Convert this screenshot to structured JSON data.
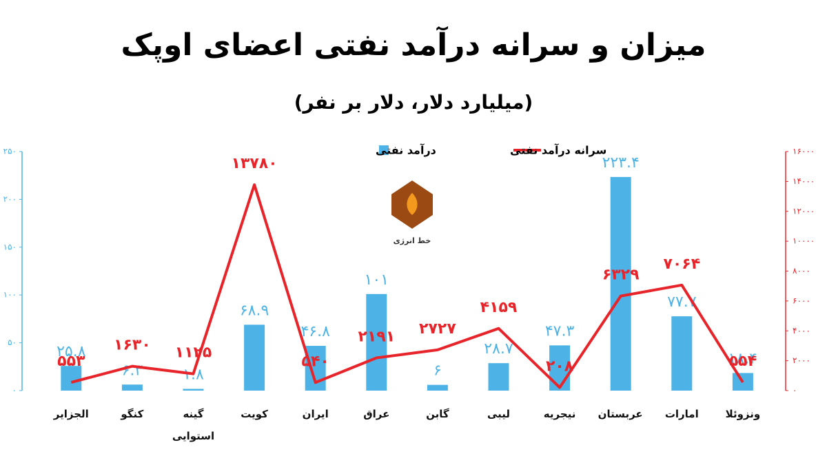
{
  "chart_data": {
    "type": "bar",
    "title": "میزان و سرانه درآمد نفتی اعضای اوپک",
    "subtitle": "(میلیارد دلار، دلار بر نفر)",
    "categories": [
      "الجزایر",
      "کنگو",
      "گینه استوایی",
      "کویت",
      "ایران",
      "عراق",
      "گابن",
      "لیبی",
      "نیجریه",
      "عربستان",
      "امارات",
      "ونزوئلا"
    ],
    "series": [
      {
        "name": "درآمد نفتی",
        "type": "bar",
        "color": "#4db3e6",
        "values": [
          25.8,
          6.3,
          1.8,
          68.9,
          46.8,
          101,
          6,
          28.7,
          47.3,
          223.4,
          77.7,
          18.4
        ],
        "value_labels": [
          "۲۵.۸",
          "۶.۳",
          "۱.۸",
          "۶۸.۹",
          "۴۶.۸",
          "۱۰۱",
          "۶",
          "۲۸.۷",
          "۴۷.۳",
          "۲۲۳.۴",
          "۷۷.۷",
          "۱۸.۴"
        ]
      },
      {
        "name": "سرانه درآمد نفتی",
        "type": "line",
        "axis": "y2",
        "color": "#e8242b",
        "values": [
          553,
          1630,
          1125,
          13780,
          540,
          2191,
          2727,
          4159,
          208,
          6329,
          7064,
          554
        ],
        "value_labels": [
          "۵۵۳",
          "۱۶۳۰",
          "۱۱۲۵",
          "۱۳۷۸۰",
          "۵۴۰",
          "۲۱۹۱",
          "۲۷۲۷",
          "۴۱۵۹",
          "۲۰۸",
          "۶۳۲۹",
          "۷۰۶۴",
          "۵۵۴"
        ]
      }
    ],
    "ylim": [
      0,
      250
    ],
    "yticks": [
      {
        "value": 0,
        "label": "۰"
      },
      {
        "value": 50,
        "label": "۵۰"
      },
      {
        "value": 100,
        "label": "۱۰۰"
      },
      {
        "value": 150,
        "label": "۱۵۰"
      },
      {
        "value": 200,
        "label": "۲۰۰"
      },
      {
        "value": 250,
        "label": "۲۵۰"
      }
    ],
    "y2lim": [
      0,
      16000
    ],
    "y2ticks": [
      {
        "value": 0,
        "label": "۰"
      },
      {
        "value": 2000,
        "label": "۲۰۰۰"
      },
      {
        "value": 4000,
        "label": "۴۰۰۰"
      },
      {
        "value": 6000,
        "label": "۶۰۰۰"
      },
      {
        "value": 8000,
        "label": "۸۰۰۰"
      },
      {
        "value": 10000,
        "label": "۱۰۰۰۰"
      },
      {
        "value": 12000,
        "label": "۱۲۰۰۰"
      },
      {
        "value": 14000,
        "label": "۱۴۰۰۰"
      },
      {
        "value": 16000,
        "label": "۱۶۰۰۰"
      }
    ],
    "grid": false
  },
  "logo": {
    "text": "خط انرژی"
  }
}
